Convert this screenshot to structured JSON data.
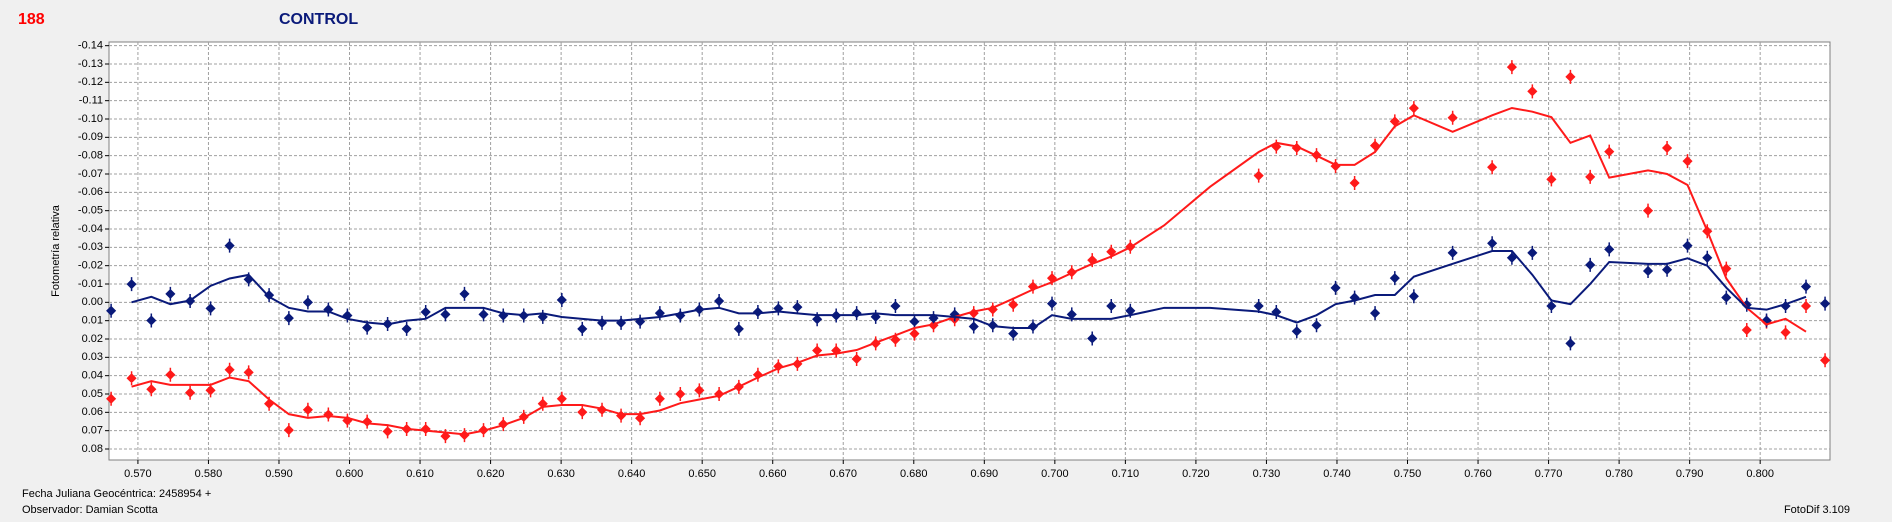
{
  "header": {
    "id": "188",
    "title": "CONTROL"
  },
  "footer": {
    "date_label": "Fecha Juliana Geocéntrica: 2458954 +",
    "observer": "Observador: Damian Scotta",
    "software": "FotoDif 3.109"
  },
  "chart_data": {
    "type": "scatter",
    "ylabel": "Fotometría relativa",
    "xlim": [
      0.5659,
      0.8099
    ],
    "ylim": [
      0.086,
      -0.142
    ],
    "grid": true,
    "xticks": [
      {
        "value": 0.57,
        "label": "0.570"
      },
      {
        "value": 0.58,
        "label": "0.580"
      },
      {
        "value": 0.59,
        "label": "0.590"
      },
      {
        "value": 0.6,
        "label": "0.600"
      },
      {
        "value": 0.61,
        "label": "0.610"
      },
      {
        "value": 0.62,
        "label": "0.620"
      },
      {
        "value": 0.63,
        "label": "0.630"
      },
      {
        "value": 0.64,
        "label": "0.640"
      },
      {
        "value": 0.65,
        "label": "0.650"
      },
      {
        "value": 0.66,
        "label": "0.660"
      },
      {
        "value": 0.67,
        "label": "0.670"
      },
      {
        "value": 0.68,
        "label": "0.680"
      },
      {
        "value": 0.69,
        "label": "0.690"
      },
      {
        "value": 0.7,
        "label": "0.700"
      },
      {
        "value": 0.71,
        "label": "0.710"
      },
      {
        "value": 0.72,
        "label": "0.720"
      },
      {
        "value": 0.73,
        "label": "0.730"
      },
      {
        "value": 0.74,
        "label": "0.740"
      },
      {
        "value": 0.75,
        "label": "0.750"
      },
      {
        "value": 0.76,
        "label": "0.760"
      },
      {
        "value": 0.77,
        "label": "0.770"
      },
      {
        "value": 0.78,
        "label": "0.780"
      },
      {
        "value": 0.79,
        "label": "0.790"
      },
      {
        "value": 0.8,
        "label": "0.800"
      }
    ],
    "yticks": [
      -0.14,
      -0.13,
      -0.12,
      -0.11,
      {
        "value": -0.1,
        "label": "-0.10"
      },
      -0.09,
      -0.08,
      -0.07,
      -0.06,
      -0.05,
      -0.04,
      -0.03,
      -0.02,
      -0.01,
      {
        "value": 0,
        "label": "0.00"
      },
      0.01,
      0.02,
      0.03,
      0.04,
      0.05,
      0.06,
      0.07,
      0.08
    ],
    "x": [
      0.5662,
      0.5691,
      0.5719,
      0.5746,
      0.5774,
      0.5803,
      0.583,
      0.5857,
      0.5886,
      0.5914,
      0.5941,
      0.597,
      0.5997,
      0.6025,
      0.6054,
      0.6081,
      0.6108,
      0.6136,
      0.6163,
      0.619,
      0.6218,
      0.6247,
      0.6274,
      0.6301,
      0.633,
      0.6358,
      0.6385,
      0.6412,
      0.644,
      0.6469,
      0.6496,
      0.6524,
      0.6552,
      0.6579,
      0.6608,
      0.6635,
      0.6663,
      0.669,
      0.6719,
      0.6746,
      0.6774,
      0.6801,
      0.6828,
      0.6858,
      0.6885,
      0.6912,
      0.6941,
      0.6969,
      0.6996,
      0.7024,
      0.7053,
      0.708,
      0.7107,
      0.7289,
      0.7314,
      0.7343,
      0.7371,
      0.7398,
      0.7425,
      0.7454,
      0.7482,
      0.7509,
      0.7564,
      0.762,
      0.7648,
      0.7677,
      0.7704,
      0.7731,
      0.7759,
      0.7786,
      0.7841,
      0.7868,
      0.7897,
      0.7925,
      0.7952,
      0.7981,
      0.8009,
      0.8036,
      0.8065,
      0.8092
    ],
    "series": [
      {
        "type": "scatter",
        "color": "#ff1a1a",
        "values": [
          0.0526,
          0.0414,
          0.0474,
          0.0395,
          0.0493,
          0.048,
          0.0368,
          0.0382,
          0.0553,
          0.0697,
          0.0586,
          0.0612,
          0.0645,
          0.0651,
          0.0704,
          0.0691,
          0.0691,
          0.073,
          0.0724,
          0.0697,
          0.0664,
          0.0625,
          0.0553,
          0.0526,
          0.0599,
          0.0586,
          0.0618,
          0.0632,
          0.0526,
          0.05,
          0.048,
          0.05,
          0.0461,
          0.0395,
          0.0349,
          0.0336,
          0.0263,
          0.0263,
          0.0309,
          0.0224,
          0.0204,
          0.0171,
          0.0125,
          0.0092,
          0.0059,
          0.0039,
          0.0013,
          -0.0086,
          -0.0132,
          -0.0164,
          -0.023,
          -0.0276,
          -0.0303,
          -0.0691,
          -0.0849,
          -0.0842,
          -0.0803,
          -0.0743,
          -0.0651,
          -0.0855,
          -0.0987,
          -0.1059,
          -0.1007,
          -0.0737,
          -0.1283,
          -0.1151,
          -0.0671,
          -0.123,
          -0.0684,
          -0.0822,
          -0.05,
          -0.0842,
          -0.077,
          -0.0388,
          -0.0184,
          0.0151,
          0.0105,
          0.0164,
          0.002,
          0.0316
        ]
      },
      {
        "type": "scatter",
        "color": "#0a1a7a",
        "values": [
          0.0046,
          -0.0099,
          0.0099,
          -0.0046,
          -0.0007,
          0.0033,
          -0.0309,
          -0.0125,
          -0.0039,
          0.0086,
          0,
          0.0039,
          0.0072,
          0.0138,
          0.0118,
          0.0145,
          0.0053,
          0.0066,
          -0.0046,
          0.0066,
          0.0072,
          0.0072,
          0.0079,
          -0.0013,
          0.0145,
          0.0112,
          0.0112,
          0.0105,
          0.0059,
          0.0072,
          0.0039,
          -0.0007,
          0.0145,
          0.0053,
          0.0033,
          0.0026,
          0.0092,
          0.0072,
          0.0059,
          0.0079,
          0.002,
          0.0105,
          0.0086,
          0.0066,
          0.0132,
          0.0125,
          0.0171,
          0.0132,
          0.0007,
          0.0066,
          0.0197,
          0.002,
          0.0046,
          0.002,
          0.0053,
          0.0158,
          0.0125,
          -0.0079,
          -0.0026,
          0.0059,
          -0.0132,
          -0.0033,
          -0.027,
          -0.0322,
          -0.0243,
          -0.027,
          0.002,
          0.0224,
          -0.0204,
          -0.0289,
          -0.0171,
          -0.0178,
          -0.0309,
          -0.0243,
          -0.0026,
          0.0013,
          0.0099,
          0.002,
          -0.0086,
          0.0007
        ]
      },
      {
        "type": "line",
        "color": "#ff1a1a",
        "x": [
          0.5691,
          0.5719,
          0.5746,
          0.5774,
          0.5803,
          0.583,
          0.5857,
          0.5886,
          0.5914,
          0.5941,
          0.597,
          0.5997,
          0.6025,
          0.6054,
          0.6081,
          0.6108,
          0.6136,
          0.6163,
          0.619,
          0.6218,
          0.6247,
          0.6274,
          0.6301,
          0.633,
          0.6358,
          0.6385,
          0.6412,
          0.644,
          0.6469,
          0.6496,
          0.6524,
          0.6552,
          0.6579,
          0.6608,
          0.6635,
          0.6663,
          0.669,
          0.6719,
          0.6746,
          0.6774,
          0.6801,
          0.6828,
          0.6858,
          0.6885,
          0.6912,
          0.6941,
          0.6969,
          0.6996,
          0.7024,
          0.7053,
          0.708,
          0.7107,
          0.7155,
          0.722,
          0.7289,
          0.7314,
          0.7343,
          0.7371,
          0.7398,
          0.7425,
          0.7454,
          0.7482,
          0.7509,
          0.7564,
          0.762,
          0.7648,
          0.7677,
          0.7704,
          0.7731,
          0.7759,
          0.7786,
          0.7841,
          0.7868,
          0.7897,
          0.7925,
          0.7952,
          0.7981,
          0.8009,
          0.8036,
          0.8065
        ],
        "values": [
          0.046,
          0.043,
          0.045,
          0.045,
          0.045,
          0.041,
          0.043,
          0.053,
          0.061,
          0.063,
          0.062,
          0.063,
          0.066,
          0.067,
          0.069,
          0.07,
          0.071,
          0.072,
          0.07,
          0.067,
          0.063,
          0.057,
          0.056,
          0.056,
          0.058,
          0.061,
          0.061,
          0.059,
          0.055,
          0.053,
          0.051,
          0.046,
          0.041,
          0.036,
          0.033,
          0.029,
          0.028,
          0.026,
          0.022,
          0.018,
          0.014,
          0.012,
          0.008,
          0.005,
          0.003,
          -0.002,
          -0.007,
          -0.011,
          -0.016,
          -0.021,
          -0.025,
          -0.03,
          -0.042,
          -0.063,
          -0.082,
          -0.087,
          -0.085,
          -0.08,
          -0.075,
          -0.075,
          -0.082,
          -0.096,
          -0.102,
          -0.093,
          -0.102,
          -0.106,
          -0.104,
          -0.101,
          -0.087,
          -0.091,
          -0.068,
          -0.072,
          -0.07,
          -0.064,
          -0.039,
          -0.013,
          0.003,
          0.012,
          0.009,
          0.016
        ]
      },
      {
        "type": "line",
        "color": "#0a1a7a",
        "x": [
          0.5691,
          0.5719,
          0.5746,
          0.5774,
          0.5803,
          0.583,
          0.5857,
          0.5886,
          0.5914,
          0.5941,
          0.597,
          0.5997,
          0.6025,
          0.6054,
          0.6081,
          0.6108,
          0.6136,
          0.6163,
          0.619,
          0.6218,
          0.6247,
          0.6274,
          0.6301,
          0.633,
          0.6358,
          0.6385,
          0.6412,
          0.644,
          0.6469,
          0.6496,
          0.6524,
          0.6552,
          0.6579,
          0.6608,
          0.6635,
          0.6663,
          0.669,
          0.6719,
          0.6746,
          0.6774,
          0.6801,
          0.6828,
          0.6858,
          0.6885,
          0.6912,
          0.6941,
          0.6969,
          0.6996,
          0.7024,
          0.7053,
          0.708,
          0.7107,
          0.7155,
          0.722,
          0.7289,
          0.7314,
          0.7343,
          0.7371,
          0.7398,
          0.7425,
          0.7454,
          0.7482,
          0.7509,
          0.7564,
          0.762,
          0.7648,
          0.7677,
          0.7704,
          0.7731,
          0.7759,
          0.7786,
          0.7841,
          0.7868,
          0.7897,
          0.7925,
          0.7952,
          0.7981,
          0.8009,
          0.8036,
          0.8065
        ],
        "values": [
          0,
          -0.003,
          0.001,
          -0.001,
          -0.009,
          -0.013,
          -0.015,
          -0.003,
          0.003,
          0.005,
          0.005,
          0.009,
          0.011,
          0.012,
          0.01,
          0.009,
          0.003,
          0.003,
          0.003,
          0.006,
          0.007,
          0.006,
          0.008,
          0.009,
          0.01,
          0.01,
          0.009,
          0.008,
          0.006,
          0.004,
          0.003,
          0.006,
          0.006,
          0.005,
          0.006,
          0.007,
          0.007,
          0.007,
          0.006,
          0.007,
          0.007,
          0.007,
          0.008,
          0.009,
          0.013,
          0.014,
          0.014,
          0.007,
          0.009,
          0.009,
          0.009,
          0.007,
          0.003,
          0.003,
          0.005,
          0.007,
          0.011,
          0.007,
          0.001,
          -0.001,
          -0.004,
          -0.004,
          -0.014,
          -0.021,
          -0.028,
          -0.028,
          -0.015,
          -0.001,
          0.001,
          -0.01,
          -0.022,
          -0.021,
          -0.021,
          -0.024,
          -0.02,
          -0.008,
          0.003,
          0.004,
          0.001,
          -0.003
        ]
      }
    ]
  }
}
